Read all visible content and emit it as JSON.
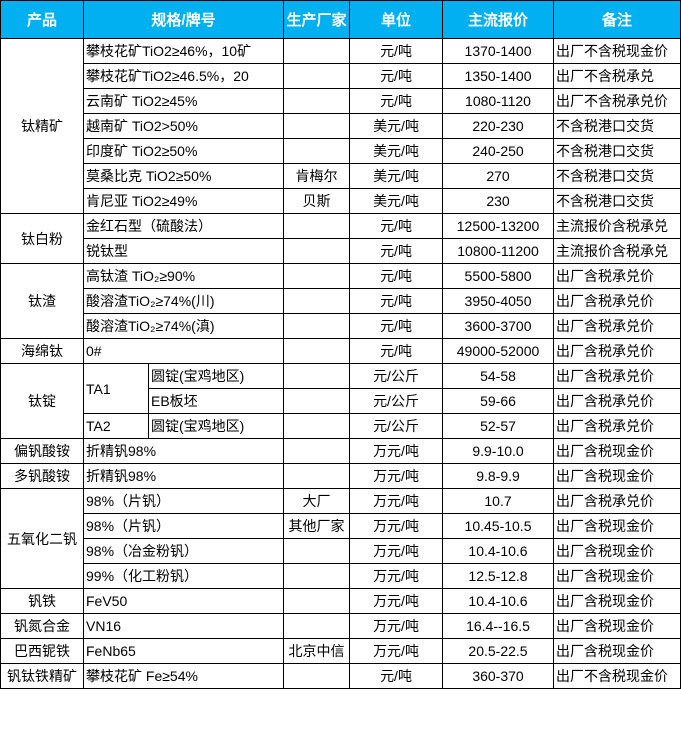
{
  "header": {
    "product": "产品",
    "spec": "规格/牌号",
    "maker": "生产厂家",
    "unit": "单位",
    "price": "主流报价",
    "note": "备注"
  },
  "colors": {
    "header_bg": "#00b0f0",
    "header_text": "#ffffff",
    "border": "#000000"
  },
  "groups": [
    {
      "product": "钛精矿",
      "items": [
        {
          "spec": "攀枝花矿TiO2≥46%，10矿",
          "maker": "",
          "unit": "元/吨",
          "price": "1370-1400",
          "note": "出厂不含税现金价"
        },
        {
          "spec": "攀枝花矿TiO2≥46.5%，20",
          "maker": "",
          "unit": "元/吨",
          "price": "1350-1400",
          "note": "出厂不含税承兑"
        },
        {
          "spec": "云南矿 TiO2≥45%",
          "maker": "",
          "unit": "元/吨",
          "price": "1080-1120",
          "note": "出厂不含税承兑价"
        },
        {
          "spec": "越南矿 TiO2>50%",
          "maker": "",
          "unit": "美元/吨",
          "price": "220-230",
          "note": "不含税港口交货"
        },
        {
          "spec": "印度矿 TiO2≥50%",
          "maker": "",
          "unit": "美元/吨",
          "price": "240-250",
          "note": "不含税港口交货"
        },
        {
          "spec": "莫桑比克 TiO2≥50%",
          "maker": "肯梅尔",
          "unit": "美元/吨",
          "price": "270",
          "note": "不含税港口交货"
        },
        {
          "spec": "肯尼亚 TiO2≥49%",
          "maker": "贝斯",
          "unit": "美元/吨",
          "price": "230",
          "note": "不含税港口交货"
        }
      ]
    },
    {
      "product": "钛白粉",
      "items": [
        {
          "spec": "金红石型（硫酸法）",
          "maker": "",
          "unit": "元/吨",
          "price": "12500-13200",
          "note": "主流报价含税承兑"
        },
        {
          "spec": "锐钛型",
          "maker": "",
          "unit": "元/吨",
          "price": "10800-11200",
          "note": "主流报价含税承兑"
        }
      ]
    },
    {
      "product": "钛渣",
      "items": [
        {
          "spec": "高钛渣 TiO₂≥90%",
          "maker": "",
          "unit": "元/吨",
          "price": "5500-5800",
          "note": "出厂含税承兑价"
        },
        {
          "spec": "酸溶渣TiO₂≥74%(川)",
          "maker": "",
          "unit": "元/吨",
          "price": "3950-4050",
          "note": "出厂含税承兑价"
        },
        {
          "spec": "酸溶渣TiO₂≥74%(滇)",
          "maker": "",
          "unit": "元/吨",
          "price": "3600-3700",
          "note": "出厂含税承兑价"
        }
      ]
    },
    {
      "product": "海绵钛",
      "items": [
        {
          "spec": "0#",
          "maker": "",
          "unit": "元/吨",
          "price": "49000-52000",
          "note": "出厂含税承兑价"
        }
      ]
    },
    {
      "product": "钛锭",
      "items": [
        {
          "grade": "TA1",
          "spec": "圆锭(宝鸡地区)",
          "maker": "",
          "unit": "元/公斤",
          "price": "54-58",
          "note": "出厂含税承兑价"
        },
        {
          "grade": "TA1",
          "spec": "EB板坯",
          "maker": "",
          "unit": "元/公斤",
          "price": "59-66",
          "note": "出厂含税承兑价"
        },
        {
          "grade": "TA2",
          "spec": "圆锭(宝鸡地区)",
          "maker": "",
          "unit": "元/公斤",
          "price": "52-57",
          "note": "出厂含税承兑价"
        }
      ]
    },
    {
      "product": "偏钒酸铵",
      "items": [
        {
          "spec": "折精钒98%",
          "maker": "",
          "unit": "万元/吨",
          "price": "9.9-10.0",
          "note": "出厂含税现金价"
        }
      ]
    },
    {
      "product": "多钒酸铵",
      "items": [
        {
          "spec": "折精钒98%",
          "maker": "",
          "unit": "万元/吨",
          "price": "9.8-9.9",
          "note": "出厂含税现金价"
        }
      ]
    },
    {
      "product": "五氧化二钒",
      "items": [
        {
          "spec": "98%（片钒）",
          "maker": "大厂",
          "unit": "万元/吨",
          "price": "10.7",
          "note": "出厂含税承兑价"
        },
        {
          "spec": "98%（片钒）",
          "maker": "其他厂家",
          "unit": "万元/吨",
          "price": "10.45-10.5",
          "note": "出厂含税现金价"
        },
        {
          "spec": "98%（冶金粉钒）",
          "maker": "",
          "unit": "万元/吨",
          "price": "10.4-10.6",
          "note": "出厂含税现金价"
        },
        {
          "spec": "99%（化工粉钒）",
          "maker": "",
          "unit": "万元/吨",
          "price": "12.5-12.8",
          "note": "出厂含税现金价"
        }
      ]
    },
    {
      "product": "钒铁",
      "items": [
        {
          "spec": "FeV50",
          "maker": "",
          "unit": "万元/吨",
          "price": "10.4-10.6",
          "note": "出厂含税现金价"
        }
      ]
    },
    {
      "product": "钒氮合金",
      "items": [
        {
          "spec": "VN16",
          "maker": "",
          "unit": "万元/吨",
          "price": "16.4--16.5",
          "note": "出厂含税现金价"
        }
      ]
    },
    {
      "product": "巴西铌铁",
      "items": [
        {
          "spec": "FeNb65",
          "maker": "北京中信",
          "unit": "万元/吨",
          "price": "20.5-22.5",
          "note": "出厂含税现金价"
        }
      ]
    },
    {
      "product": "钒钛铁精矿",
      "items": [
        {
          "spec": "攀枝花矿 Fe≥54%",
          "maker": "",
          "unit": "元/吨",
          "price": "360-370",
          "note": "出厂不含税现金价"
        }
      ]
    }
  ]
}
